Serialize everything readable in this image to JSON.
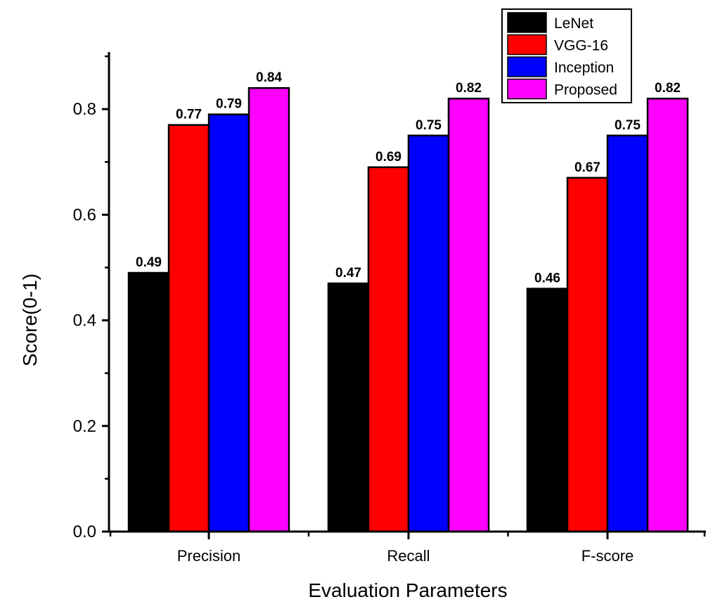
{
  "chart_data": {
    "type": "bar",
    "title": "",
    "xlabel": "Evaluation Parameters",
    "ylabel": "Score(0-1)",
    "categories": [
      "Precision",
      "Recall",
      "F-score"
    ],
    "series": [
      {
        "name": "LeNet",
        "color": "#000000",
        "values": [
          0.49,
          0.47,
          0.46
        ],
        "labels": [
          "0.49",
          "0.47",
          "0.46"
        ]
      },
      {
        "name": "VGG-16",
        "color": "#ff0000",
        "values": [
          0.77,
          0.69,
          0.67
        ],
        "labels": [
          "0.77",
          "0.69",
          "0.67"
        ]
      },
      {
        "name": "Inception",
        "color": "#0000ff",
        "values": [
          0.79,
          0.75,
          0.75
        ],
        "labels": [
          "0.79",
          "0.75",
          "0.75"
        ]
      },
      {
        "name": "Proposed",
        "color": "#ff00ff",
        "values": [
          0.84,
          0.82,
          0.82
        ],
        "labels": [
          "0.84",
          "0.82",
          "0.82"
        ]
      }
    ],
    "ylim": [
      0,
      0.9
    ],
    "yticks": [
      0.0,
      0.2,
      0.4,
      0.6,
      0.8
    ],
    "ytick_labels": [
      "0.0",
      "0.2",
      "0.4",
      "0.6",
      "0.8"
    ],
    "grid": false,
    "legend_position": "top-right"
  }
}
